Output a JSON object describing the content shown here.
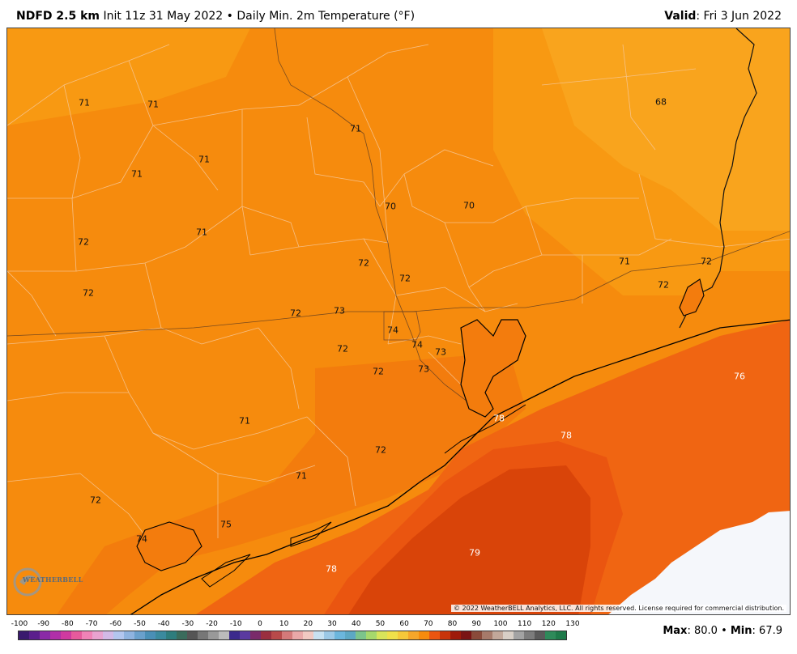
{
  "header": {
    "model": "NDFD 2.5 km",
    "init": "Init 11z 31 May 2022",
    "separator": "•",
    "field": "Daily Min. 2m Temperature (°F)",
    "valid_label": "Valid",
    "valid_value": ": Fri 3 Jun 2022"
  },
  "map": {
    "colors": {
      "t68": "#f9a41d",
      "t70": "#f89912",
      "t72": "#f68b0d",
      "t74": "#f37c0d",
      "t76": "#f06512",
      "t78": "#ea5510",
      "t79": "#d94409",
      "nodata": "#f5f7fb"
    },
    "labels": [
      {
        "v": "71",
        "c": "dark"
      },
      {
        "v": "71",
        "c": "dark"
      },
      {
        "v": "71",
        "c": "dark"
      },
      {
        "v": "71",
        "c": "dark"
      },
      {
        "v": "68",
        "c": "dark"
      },
      {
        "v": "71",
        "c": "dark"
      },
      {
        "v": "70",
        "c": "dark"
      },
      {
        "v": "70",
        "c": "dark"
      },
      {
        "v": "72",
        "c": "dark"
      },
      {
        "v": "71",
        "c": "dark"
      },
      {
        "v": "72",
        "c": "dark"
      },
      {
        "v": "72",
        "c": "dark"
      },
      {
        "v": "71",
        "c": "dark"
      },
      {
        "v": "72",
        "c": "dark"
      },
      {
        "v": "72",
        "c": "dark"
      },
      {
        "v": "72",
        "c": "dark"
      },
      {
        "v": "72",
        "c": "dark"
      },
      {
        "v": "73",
        "c": "dark"
      },
      {
        "v": "74",
        "c": "dark"
      },
      {
        "v": "74",
        "c": "dark"
      },
      {
        "v": "73",
        "c": "dark"
      },
      {
        "v": "72",
        "c": "dark"
      },
      {
        "v": "72",
        "c": "dark"
      },
      {
        "v": "73",
        "c": "dark"
      },
      {
        "v": "76",
        "c": "white"
      },
      {
        "v": "71",
        "c": "dark"
      },
      {
        "v": "78",
        "c": "white"
      },
      {
        "v": "78",
        "c": "white"
      },
      {
        "v": "72",
        "c": "dark"
      },
      {
        "v": "71",
        "c": "dark"
      },
      {
        "v": "72",
        "c": "dark"
      },
      {
        "v": "75",
        "c": "dark"
      },
      {
        "v": "74",
        "c": "dark"
      },
      {
        "v": "79",
        "c": "white"
      },
      {
        "v": "78",
        "c": "white"
      }
    ],
    "copyright": "© 2022 WeatherBELL Analytics, LLC. All rights reserved. License required for commercial distribution.",
    "logo_text": "WEATHERBELL"
  },
  "colorbar": {
    "ticks": [
      "-100",
      "-90",
      "-80",
      "-70",
      "-60",
      "-50",
      "-40",
      "-30",
      "-20",
      "-10",
      "0",
      "10",
      "20",
      "30",
      "40",
      "50",
      "60",
      "70",
      "80",
      "90",
      "100",
      "110",
      "120",
      "130"
    ],
    "colors": [
      "#3a1a6e",
      "#5b1f8c",
      "#8a2aa6",
      "#b02fa8",
      "#cf3aa0",
      "#e65a9c",
      "#f082b6",
      "#e9a2cf",
      "#d3b9e6",
      "#b3c6ee",
      "#8fb3df",
      "#6aa0cc",
      "#4a8fb6",
      "#3b8a9e",
      "#2e7d7d",
      "#3a6c5c",
      "#555555",
      "#777777",
      "#999999",
      "#bbbbbb",
      "#3b2a8c",
      "#5a3aa0",
      "#7a2a6a",
      "#9a2f3f",
      "#b84a4a",
      "#d47a7a",
      "#e9a8a8",
      "#f1c9c2",
      "#c8e2f2",
      "#9cc9e6",
      "#6cb6dc",
      "#5da8c4",
      "#7cc48c",
      "#a6d86c",
      "#d8e45a",
      "#f0e04a",
      "#f6c83a",
      "#f6a62a",
      "#f68b0d",
      "#ea5510",
      "#c8340a",
      "#9e1a0a",
      "#7a1414",
      "#8a4a3a",
      "#a67a6a",
      "#c2a89a",
      "#d8cfc6",
      "#a3a3a3",
      "#7c7c7c",
      "#5a5a5a",
      "#2e8a5a",
      "#1e7a4a"
    ]
  },
  "stats": {
    "max_label": "Max",
    "max_value": ": 80.0",
    "sep": "•",
    "min_label": "Min",
    "min_value": ": 67.9"
  }
}
